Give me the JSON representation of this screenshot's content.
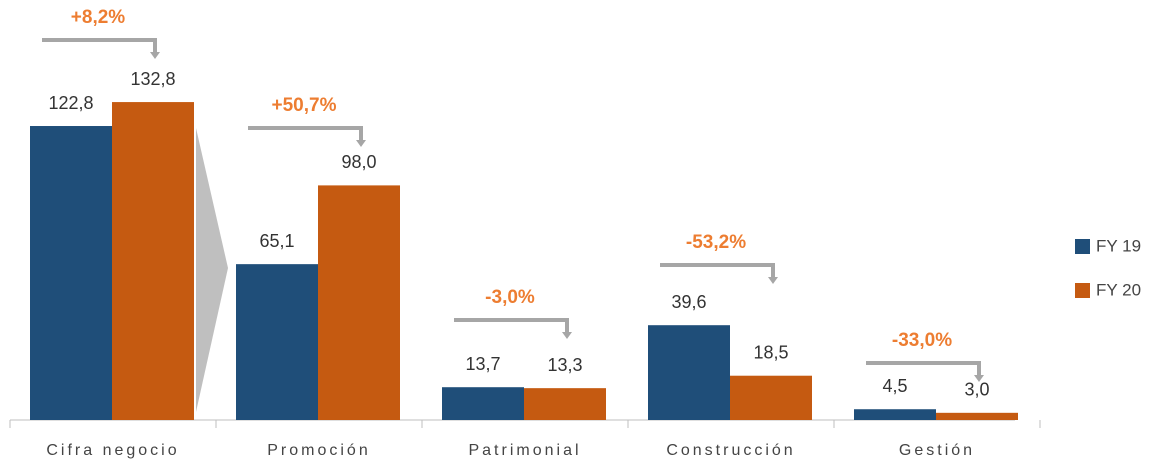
{
  "chart_data": {
    "type": "bar",
    "categories": [
      "Cifra negocio",
      "Promoción",
      "Patrimonial",
      "Construcción",
      "Gestión"
    ],
    "series": [
      {
        "name": "FY 19",
        "color": "#1f4e79",
        "values": [
          122.8,
          65.1,
          13.7,
          39.6,
          4.5
        ],
        "value_labels": [
          "122,8",
          "65,1",
          "13,7",
          "39,6",
          "4,5"
        ]
      },
      {
        "name": "FY 20",
        "color": "#c55a11",
        "values": [
          132.8,
          98.0,
          13.3,
          18.5,
          3.0
        ],
        "value_labels": [
          "132,8",
          "98,0",
          "13,3",
          "18,5",
          "3,0"
        ]
      }
    ],
    "annotations": [
      "+8,2%",
      "+50,7%",
      "-3,0%",
      "-53,2%",
      "-33,0%"
    ],
    "annotation_color": "#ed7d31"
  }
}
